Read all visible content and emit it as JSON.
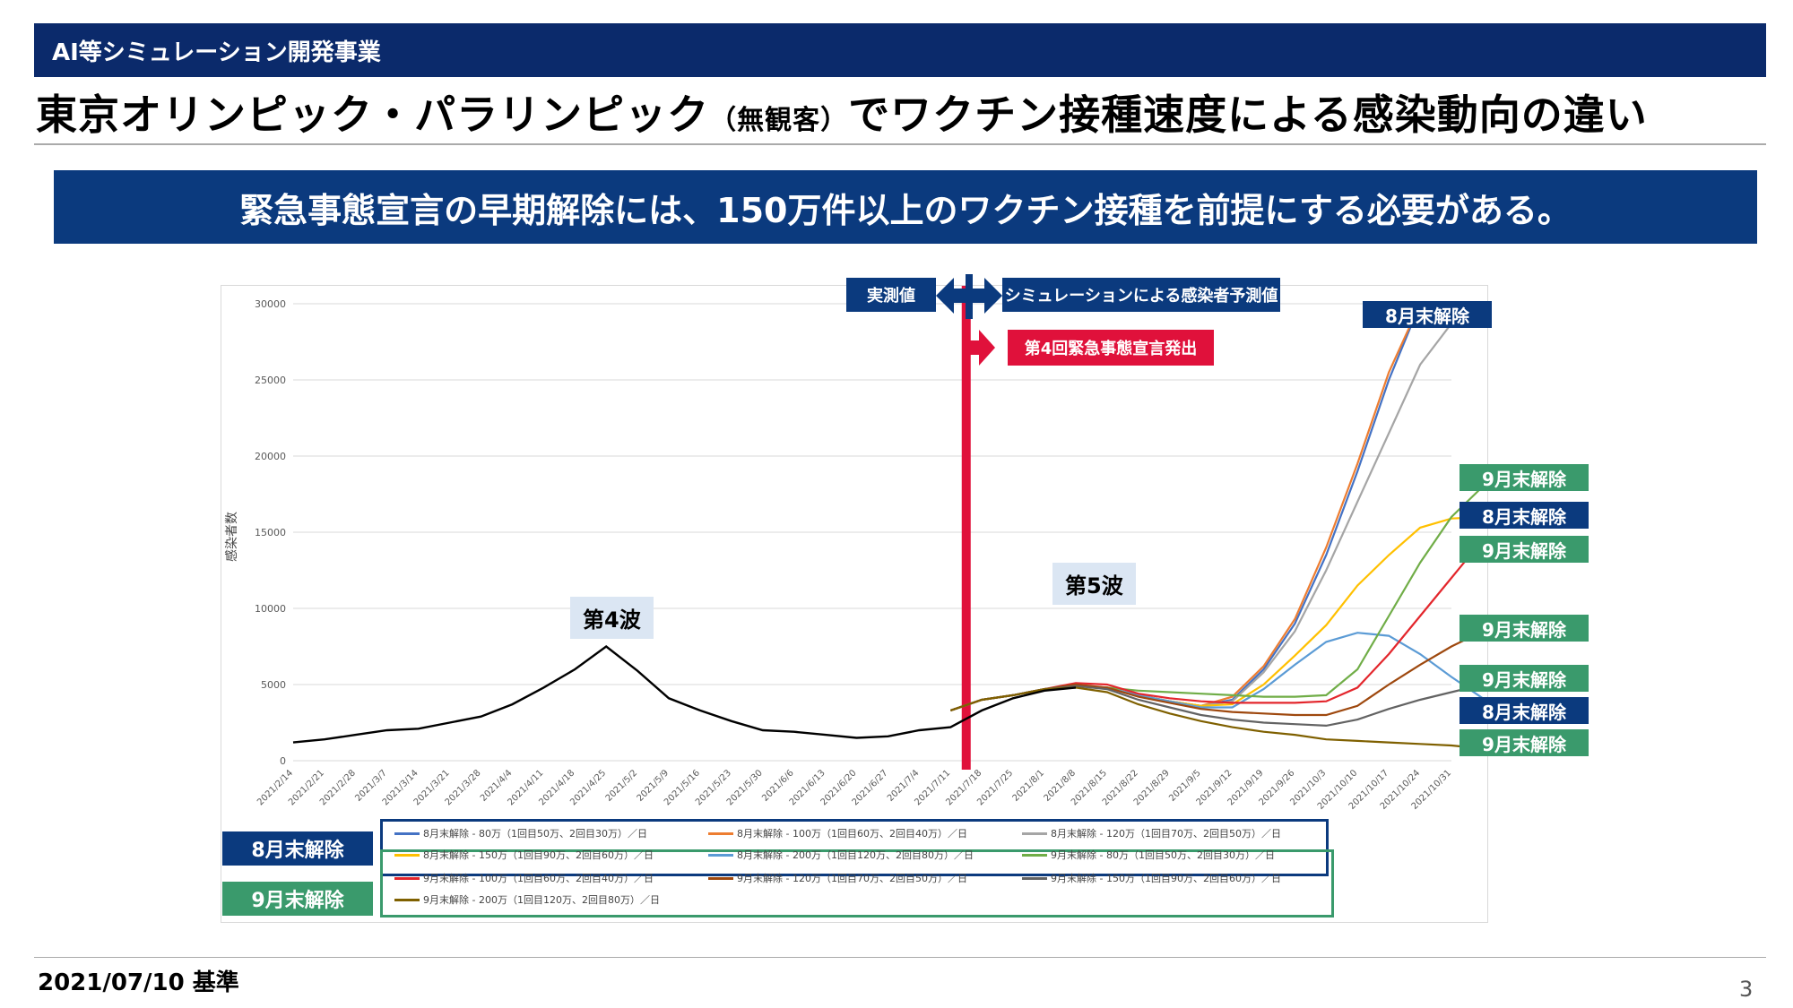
{
  "header": {
    "category": "AI等シミュレーション開発事業"
  },
  "title": {
    "main": "東京オリンピック・パラリンピック",
    "sub": "（無観客）",
    "rest": "でワクチン接種速度による感染動向の違い"
  },
  "key_message": "緊急事態宣言の早期解除には、150万件以上のワクチン接種を前提にする必要がある。",
  "annotations": {
    "measured": "実測値",
    "simulated": "シミュレーションによる感染者予測値",
    "declaration": "第4回緊急事態宣言発出",
    "wave4": "第4波",
    "wave5": "第5波",
    "right_labels": [
      {
        "text": "8月末解除",
        "kind": "navy"
      },
      {
        "text": "9月末解除",
        "kind": "green"
      },
      {
        "text": "8月末解除",
        "kind": "navy"
      },
      {
        "text": "9月末解除",
        "kind": "green"
      },
      {
        "text": "9月末解除",
        "kind": "green"
      },
      {
        "text": "9月末解除",
        "kind": "green"
      },
      {
        "text": "8月末解除",
        "kind": "navy"
      },
      {
        "text": "9月末解除",
        "kind": "green"
      }
    ],
    "legend_group_aug": "8月末解除",
    "legend_group_sep": "9月末解除"
  },
  "colors": {
    "navy": "#0b3a7e",
    "green": "#3a9a6c",
    "red": "#e0113b"
  },
  "chart_data": {
    "type": "line",
    "ylabel": "感染者数",
    "ylim": [
      0,
      30000
    ],
    "yticks": [
      "0",
      "5000",
      "10000",
      "15000",
      "20000",
      "25000",
      "30000"
    ],
    "x_ticks": [
      "2021/2/14",
      "2021/2/21",
      "2021/2/28",
      "2021/3/7",
      "2021/3/14",
      "2021/3/21",
      "2021/3/28",
      "2021/4/4",
      "2021/4/11",
      "2021/4/18",
      "2021/4/25",
      "2021/5/2",
      "2021/5/9",
      "2021/5/16",
      "2021/5/23",
      "2021/5/30",
      "2021/6/6",
      "2021/6/13",
      "2021/6/20",
      "2021/6/27",
      "2021/7/4",
      "2021/7/11",
      "2021/7/18",
      "2021/7/25",
      "2021/8/1",
      "2021/8/8",
      "2021/8/15",
      "2021/8/22",
      "2021/8/29",
      "2021/9/5",
      "2021/9/12",
      "2021/9/19",
      "2021/9/26",
      "2021/10/3",
      "2021/10/10",
      "2021/10/17",
      "2021/10/24",
      "2021/10/31"
    ],
    "declaration_week": 21.5,
    "actual": {
      "name": "実測値",
      "color": "#000000",
      "values": [
        1200,
        1400,
        1700,
        2000,
        2100,
        2500,
        2900,
        3700,
        4800,
        6000,
        7500,
        5900,
        4100,
        3300,
        2600,
        2000,
        1900,
        1700,
        1500,
        1600,
        2000,
        2200,
        3300,
        4100,
        4600,
        4800
      ]
    },
    "series": [
      {
        "name": "8月末解除 - 80万（1回目50万、2回目30万）／日",
        "color": "#4472c4",
        "values": [
          3300,
          4000,
          4300,
          4700,
          4900,
          4800,
          4300,
          3900,
          3600,
          4000,
          6000,
          9000,
          13500,
          19000,
          25000,
          30000
        ]
      },
      {
        "name": "8月末解除 - 100万（1回目60万、2回目40万）／日",
        "color": "#ed7d31",
        "values": [
          3300,
          4000,
          4300,
          4700,
          4900,
          4800,
          4300,
          3900,
          3600,
          4200,
          6200,
          9300,
          14000,
          19500,
          25500,
          30000
        ]
      },
      {
        "name": "8月末解除 - 120万（1回目70万、2回目50万）／日",
        "color": "#a5a5a5",
        "values": [
          3300,
          4000,
          4300,
          4700,
          4900,
          4800,
          4300,
          3900,
          3600,
          3900,
          5800,
          8500,
          12500,
          17000,
          21500,
          26000,
          28700
        ]
      },
      {
        "name": "8月末解除 - 150万（1回目90万、2回目60万）／日",
        "color": "#ffc000",
        "values": [
          3300,
          4000,
          4300,
          4700,
          4900,
          4800,
          4300,
          3900,
          3600,
          3700,
          5000,
          6900,
          8900,
          11500,
          13500,
          15300,
          15900,
          16000
        ]
      },
      {
        "name": "8月末解除 - 200万（1回目120万、2回目80万）／日",
        "color": "#5b9bd5",
        "values": [
          3300,
          4000,
          4300,
          4700,
          4900,
          4800,
          4300,
          3900,
          3500,
          3500,
          4700,
          6300,
          7800,
          8400,
          8200,
          7000,
          5500,
          4100
        ]
      },
      {
        "name": "9月末解除 - 80万（1回目50万、2回目30万）／日",
        "color": "#70ad47",
        "values": [
          3300,
          4000,
          4300,
          4700,
          4900,
          4800,
          4600,
          4500,
          4400,
          4300,
          4200,
          4200,
          4300,
          6000,
          9500,
          13000,
          16000,
          18000
        ]
      },
      {
        "name": "9月末解除 - 100万（1回目60万、2回目40万）／日",
        "color": "#e3262c",
        "values": [
          3300,
          4000,
          4300,
          4700,
          5100,
          5000,
          4400,
          4100,
          3900,
          3800,
          3800,
          3800,
          3900,
          4800,
          7000,
          9500,
          12000,
          14500
        ]
      },
      {
        "name": "9月末解除 - 120万（1回目70万、2回目50万）／日",
        "color": "#9e480e",
        "values": [
          3300,
          4000,
          4300,
          4700,
          5000,
          4800,
          4200,
          3800,
          3400,
          3200,
          3100,
          3000,
          3000,
          3600,
          5000,
          6300,
          7500,
          8500
        ]
      },
      {
        "name": "9月末解除 - 150万（1回目90万、2回目60万）／日",
        "color": "#636363",
        "values": [
          3300,
          4000,
          4300,
          4700,
          4900,
          4700,
          4000,
          3500,
          3000,
          2700,
          2500,
          2400,
          2300,
          2700,
          3400,
          4000,
          4500,
          5000
        ]
      },
      {
        "name": "9月末解除 - 200万（1回目120万、2回目80万）／日",
        "color": "#7f6000",
        "values": [
          3300,
          4000,
          4300,
          4700,
          4800,
          4500,
          3700,
          3100,
          2600,
          2200,
          1900,
          1700,
          1400,
          1300,
          1200,
          1100,
          1000,
          800
        ]
      }
    ]
  },
  "footer": {
    "date": "2021/07/10 基準",
    "page": "3"
  }
}
